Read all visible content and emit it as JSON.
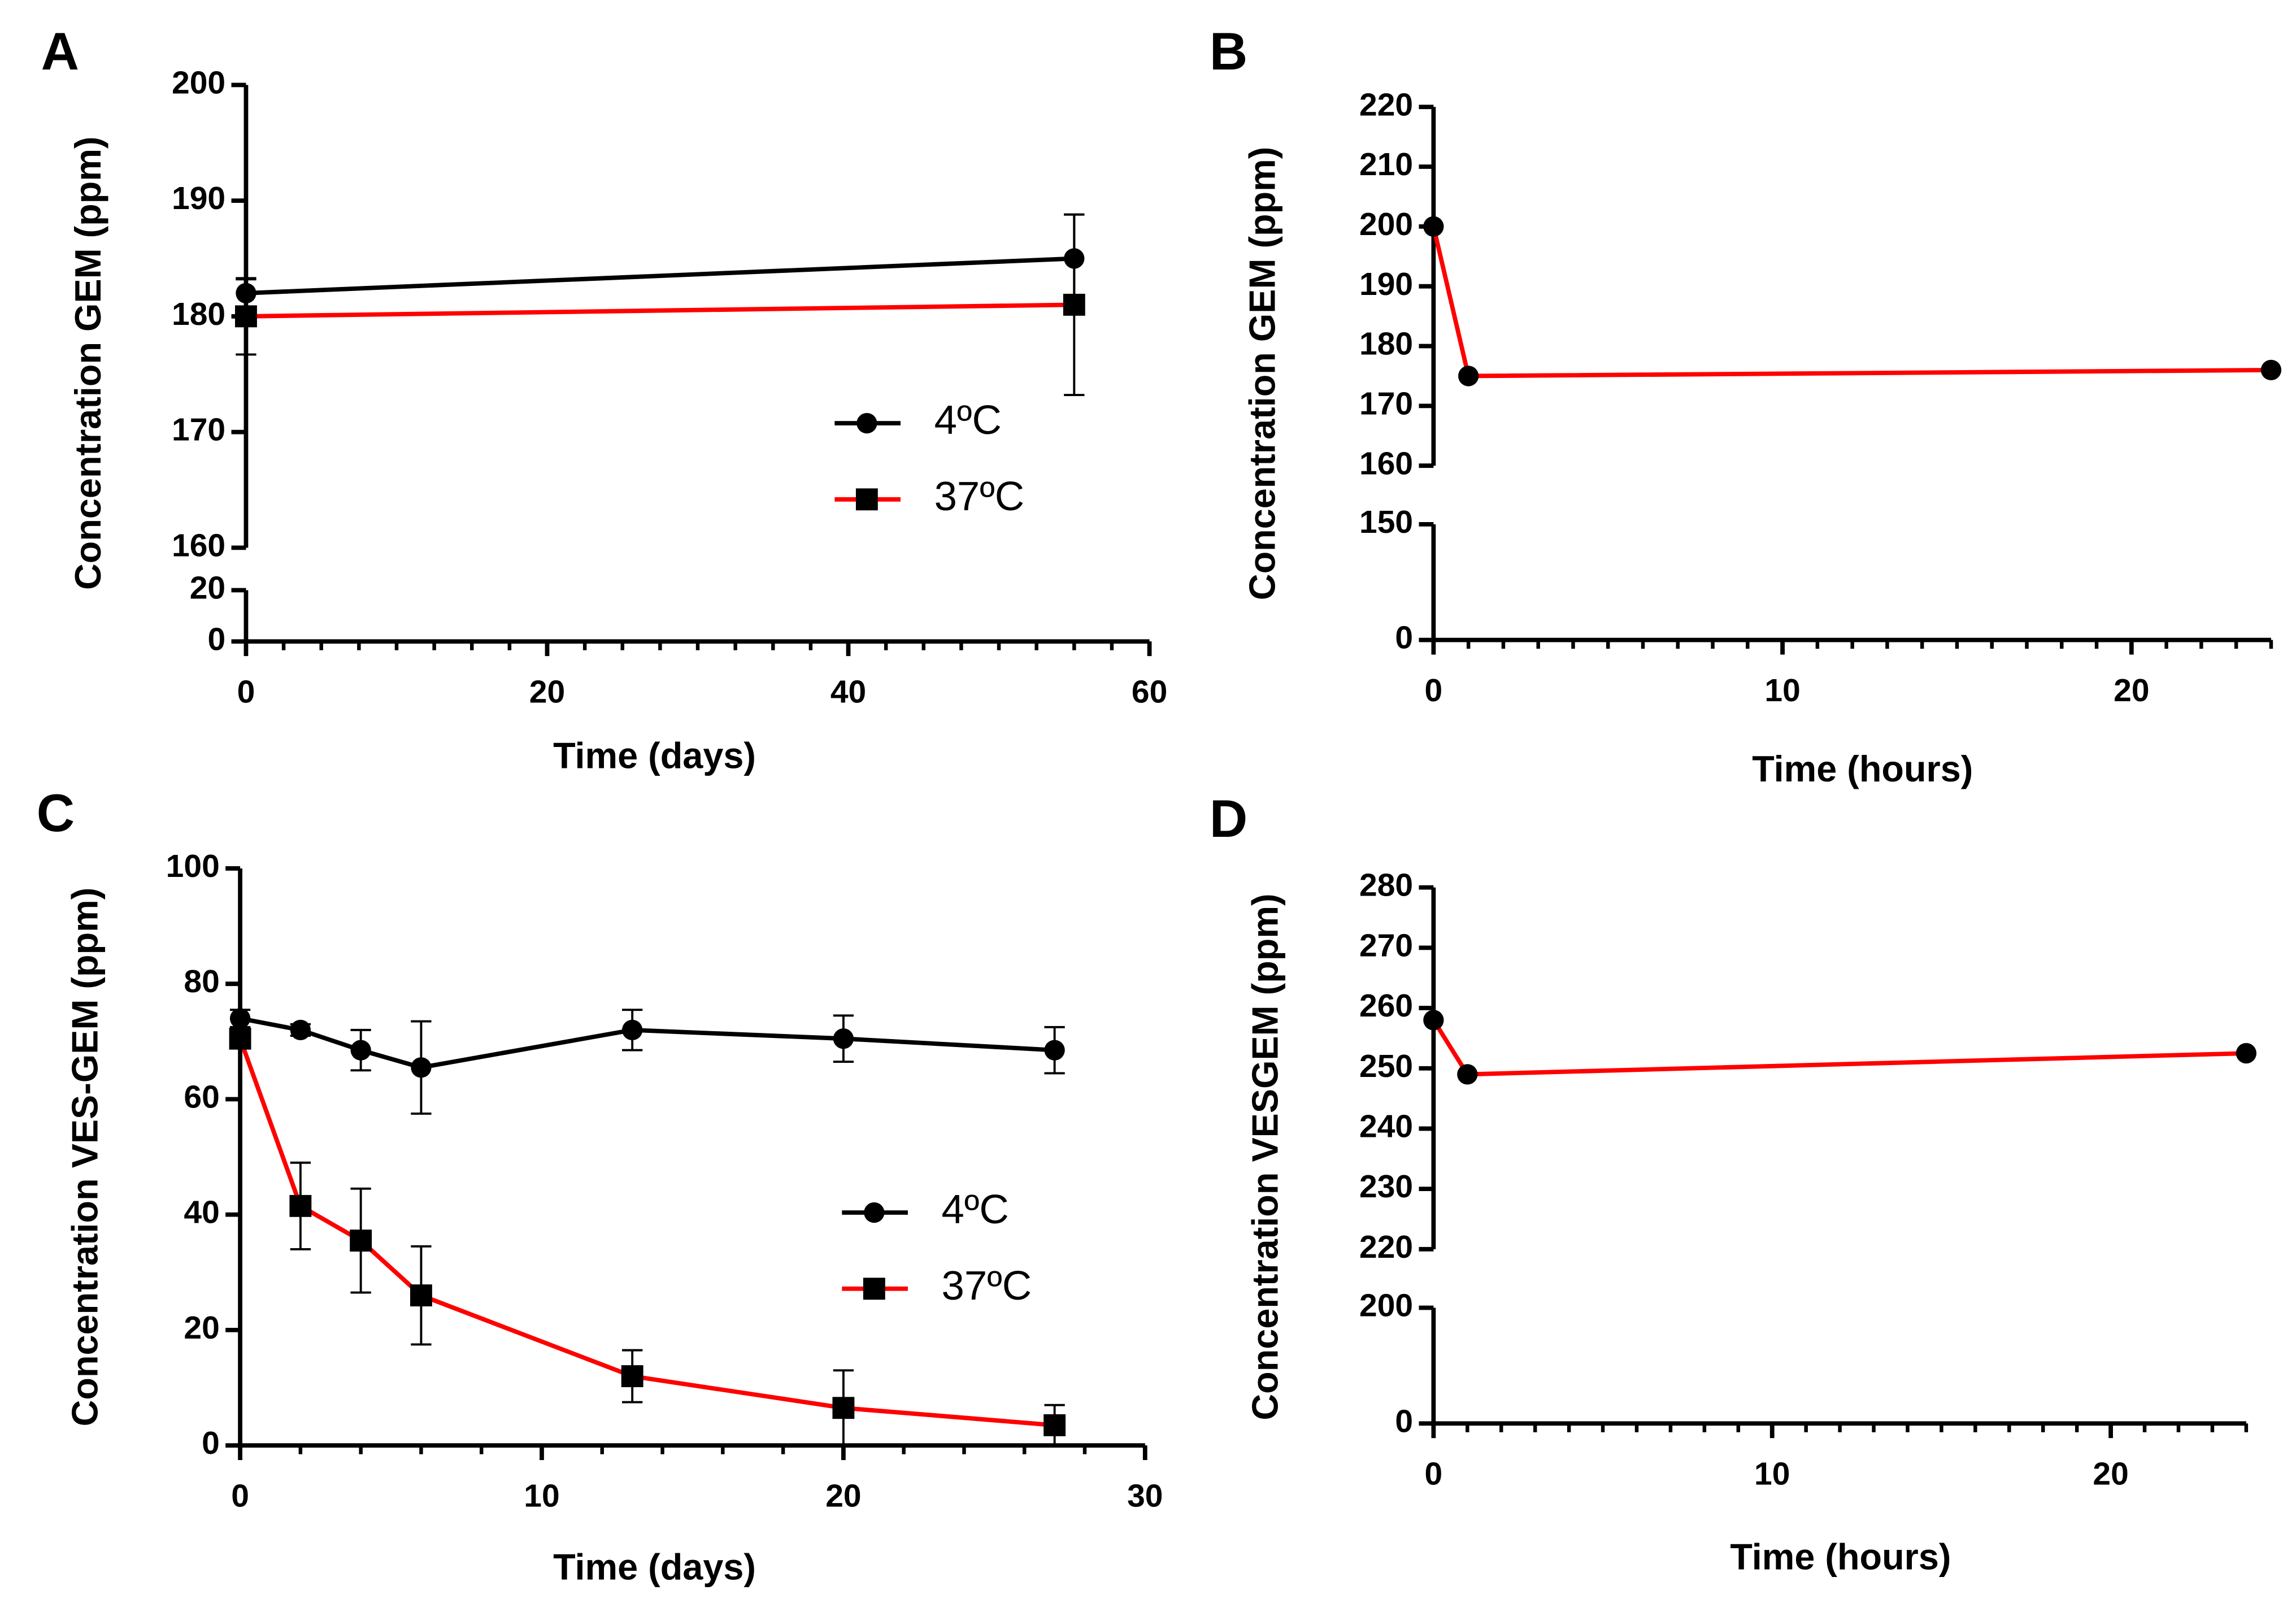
{
  "chart_data": [
    {
      "type": "line",
      "panel_label": "A",
      "xlabel": "Time (days)",
      "ylabel": "Concentration GEM (ppm)",
      "xlim": [
        0,
        60
      ],
      "xticks": [
        0,
        20,
        40,
        60
      ],
      "xminor_step": 2.5,
      "y_segments": [
        {
          "ylim": [
            0,
            20
          ],
          "yticks": [
            0,
            20
          ]
        },
        {
          "ylim": [
            160,
            200
          ],
          "yticks": [
            160,
            170,
            180,
            190,
            200
          ]
        }
      ],
      "x": [
        0,
        55
      ],
      "series": [
        {
          "name": "4ºC",
          "color": "#000000",
          "marker_color": "#000000",
          "marker": "circle",
          "values": [
            182,
            185
          ],
          "errors": [
            1.2,
            3.8
          ]
        },
        {
          "name": "37ºC",
          "color": "#ff0000",
          "marker_color": "#000000",
          "marker": "square",
          "values": [
            180,
            181
          ],
          "errors": [
            3.3,
            7.8
          ]
        }
      ]
    },
    {
      "type": "line",
      "panel_label": "B",
      "xlabel": "Time (hours)",
      "ylabel": "Concentration GEM (ppm)",
      "xlim": [
        0,
        24
      ],
      "xticks": [
        0,
        10,
        20
      ],
      "xminor_step": 1,
      "y_segments": [
        {
          "ylim": [
            0,
            150
          ],
          "yticks": [
            0,
            150
          ]
        },
        {
          "ylim": [
            160,
            220
          ],
          "yticks": [
            160,
            170,
            180,
            190,
            200,
            210,
            220
          ]
        }
      ],
      "x": [
        0,
        1,
        24
      ],
      "series": [
        {
          "color": "#ff0000",
          "marker_color": "#000000",
          "marker": "circle",
          "values": [
            200,
            175,
            176
          ]
        }
      ]
    },
    {
      "type": "line",
      "panel_label": "C",
      "xlabel": "Time (days)",
      "ylabel": "Concentration VES-GEM (ppm)",
      "xlim": [
        0,
        30
      ],
      "xticks": [
        0,
        10,
        20,
        30
      ],
      "xminor_step": 2,
      "y_segments": [
        {
          "ylim": [
            0,
            100
          ],
          "yticks": [
            0,
            20,
            40,
            60,
            80,
            100
          ]
        }
      ],
      "x": [
        0,
        2,
        4,
        6,
        13,
        20,
        27
      ],
      "series": [
        {
          "name": "4ºC",
          "color": "#000000",
          "marker_color": "#000000",
          "marker": "circle",
          "values": [
            74,
            72,
            68.5,
            65.5,
            72,
            70.5,
            68.5
          ],
          "errors": [
            1.5,
            1,
            3.5,
            8,
            3.5,
            4,
            4
          ]
        },
        {
          "name": "37ºC",
          "color": "#ff0000",
          "marker_color": "#000000",
          "marker": "square",
          "values": [
            70.5,
            41.5,
            35.5,
            26,
            12,
            6.5,
            3.5
          ],
          "errors": [
            1.5,
            7.5,
            9,
            8.5,
            4.5,
            6.5,
            3.5
          ]
        }
      ]
    },
    {
      "type": "line",
      "panel_label": "D",
      "xlabel": "Time (hours)",
      "ylabel": "Concentration VESGEM (ppm)",
      "xlim": [
        0,
        24
      ],
      "xticks": [
        0,
        10,
        20
      ],
      "xminor_step": 1,
      "y_segments": [
        {
          "ylim": [
            0,
            200
          ],
          "yticks": [
            0,
            200
          ]
        },
        {
          "ylim": [
            220,
            280
          ],
          "yticks": [
            220,
            230,
            240,
            250,
            260,
            270,
            280
          ]
        }
      ],
      "x": [
        0,
        1,
        24
      ],
      "series": [
        {
          "color": "#ff0000",
          "marker_color": "#000000",
          "marker": "circle",
          "values": [
            258,
            249,
            252.5
          ]
        }
      ]
    }
  ]
}
